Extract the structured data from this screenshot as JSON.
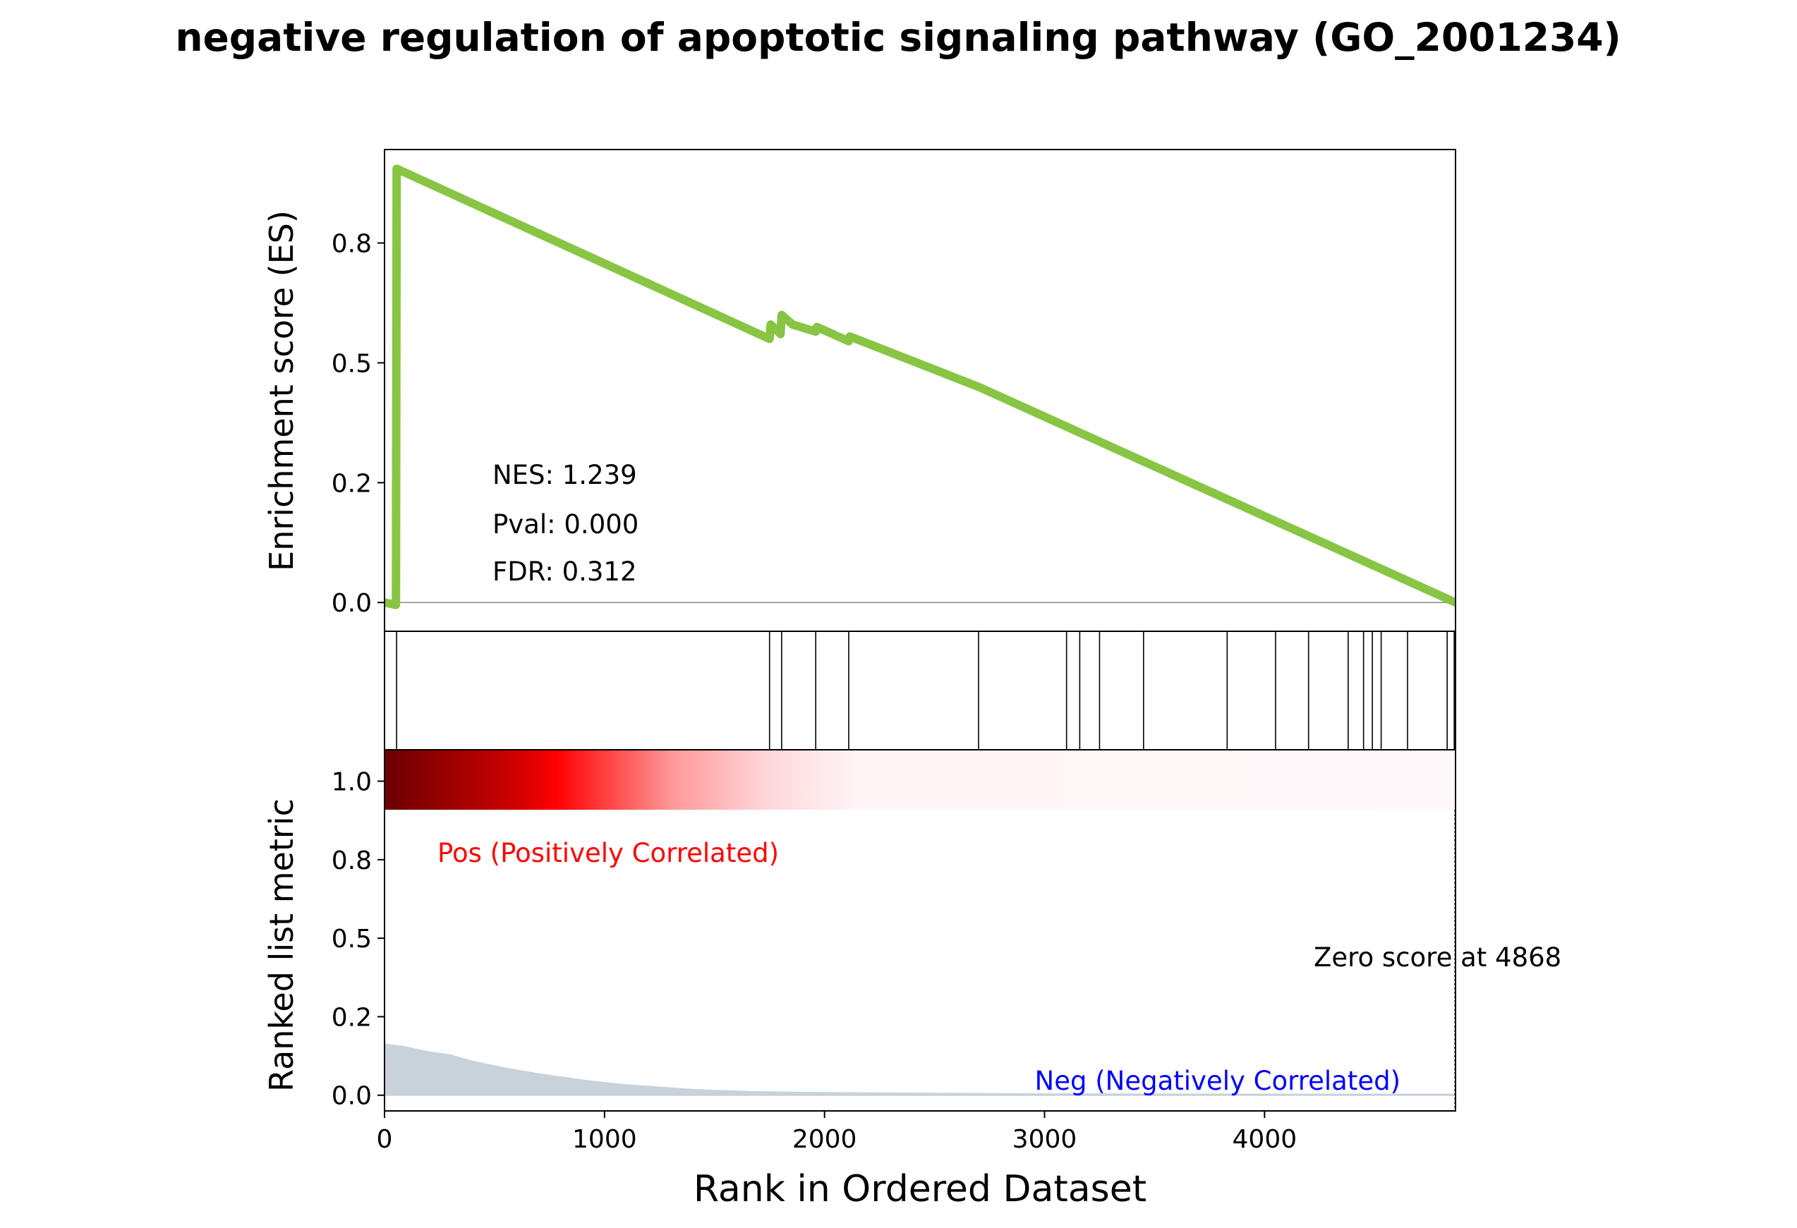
{
  "chart_data": {
    "type": "line",
    "title": "negative regulation of apoptotic signaling pathway (GO_2001234)",
    "xlabel": "Rank in Ordered Dataset",
    "xlim": [
      0,
      4868
    ],
    "xticks": [
      0,
      1000,
      2000,
      3000,
      4000
    ],
    "xtick_labels": [
      "0",
      "1000",
      "2000",
      "3000",
      "4000"
    ],
    "es_panel": {
      "ylabel": "Enrichment score (ES)",
      "ylim": [
        -0.06,
        0.945
      ],
      "yticks": [
        0.0,
        0.25,
        0.5,
        0.75
      ],
      "ytick_labels": [
        "0.0",
        "0.2",
        "0.5",
        "0.8"
      ],
      "series": [
        {
          "color": "#88c544",
          "x": [
            0,
            52,
            55,
            1750,
            1755,
            1800,
            1805,
            1855,
            1960,
            1965,
            2110,
            2115,
            2700,
            4868
          ],
          "y": [
            0.0,
            -0.005,
            0.905,
            0.55,
            0.58,
            0.56,
            0.6,
            0.58,
            0.565,
            0.575,
            0.545,
            0.555,
            0.45,
            0.0
          ]
        }
      ],
      "zero_line": 0,
      "annotations": [
        "NES: 1.239",
        "Pval: 0.000",
        "FDR: 0.312"
      ]
    },
    "hits": [
      55,
      1750,
      1805,
      1960,
      2110,
      2700,
      3100,
      3160,
      3250,
      3450,
      3830,
      4050,
      4200,
      4380,
      4450,
      4490,
      4530,
      4650,
      4830,
      4862
    ],
    "ranked_panel": {
      "ylabel": "Ranked list metric",
      "ylim": [
        -0.05,
        1.1
      ],
      "yticks": [
        0.0,
        0.25,
        0.5,
        0.75,
        1.0
      ],
      "ytick_labels": [
        "0.0",
        "0.2",
        "0.5",
        "0.8",
        "1.0"
      ],
      "metric_color": "#c8d2db",
      "metric": {
        "x": [
          0,
          100,
          200,
          300,
          350,
          400,
          500,
          600,
          700,
          800,
          900,
          1000,
          1100,
          1200,
          1300,
          1400,
          1500,
          1700,
          2000,
          2500,
          3000,
          4000,
          4868
        ],
        "y": [
          0.165,
          0.155,
          0.14,
          0.13,
          0.12,
          0.11,
          0.095,
          0.082,
          0.07,
          0.06,
          0.05,
          0.042,
          0.035,
          0.03,
          0.025,
          0.02,
          0.017,
          0.013,
          0.01,
          0.008,
          0.006,
          0.005,
          0.005
        ]
      },
      "heat_colors": [
        "#6b0000",
        "#cc0000",
        "#ff0000",
        "#ff9a9a",
        "#ffe6e8",
        "#fff6f8"
      ],
      "pos_label": "Pos (Positively Correlated)",
      "pos_color": "#ff0000",
      "neg_label": "Neg (Negatively Correlated)",
      "neg_color": "#0000ff",
      "zero_score_label": "Zero score at 4868",
      "zero_score_x": 4868
    }
  }
}
